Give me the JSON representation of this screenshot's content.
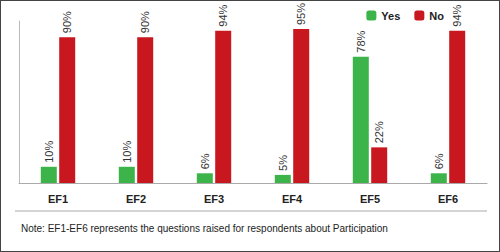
{
  "chart_data": {
    "type": "bar",
    "categories": [
      "EF1",
      "EF2",
      "EF3",
      "EF4",
      "EF5",
      "EF6"
    ],
    "series": [
      {
        "name": "Yes",
        "color": "#3cb44a",
        "values": [
          10,
          10,
          6,
          5,
          78,
          6
        ],
        "value_labels": [
          "10%",
          "10%",
          "6%",
          "5%",
          "78%",
          "6%"
        ]
      },
      {
        "name": "No",
        "color": "#c8171e",
        "values": [
          90,
          90,
          94,
          95,
          22,
          94
        ],
        "value_labels": [
          "90%",
          "90%",
          "94%",
          "95%",
          "22%",
          "94%"
        ]
      }
    ],
    "ylim": [
      0,
      100
    ],
    "grid": false,
    "legend": "top-right",
    "data_labels": true,
    "tick_labels": "x",
    "note": "Note: EF1-EF6 represents the questions raised for respondents about Participation"
  }
}
